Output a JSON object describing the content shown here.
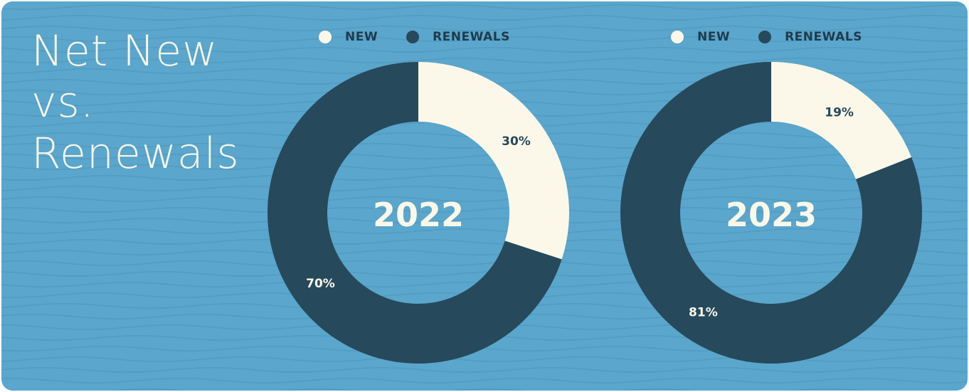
{
  "title_lines": [
    "Net New",
    "vs.",
    "Renewals"
  ],
  "colors": {
    "background": "#5aa6cc",
    "wave": "#4f96bb",
    "new": "#fbf8e9",
    "renewals": "#26495c",
    "label_on_new": "#26495c",
    "label_on_renewals": "#fbf8e9",
    "center_text": "#fbf8e9"
  },
  "legend": {
    "new_label": "NEW",
    "renewals_label": "RENEWALS"
  },
  "chart_data": [
    {
      "type": "donut",
      "center_label": "2022",
      "categories": [
        "NEW",
        "RENEWALS"
      ],
      "values": [
        30,
        70
      ],
      "labels": [
        "30%",
        "70%"
      ]
    },
    {
      "type": "donut",
      "center_label": "2023",
      "categories": [
        "NEW",
        "RENEWALS"
      ],
      "values": [
        19,
        81
      ],
      "labels": [
        "19%",
        "81%"
      ]
    }
  ]
}
